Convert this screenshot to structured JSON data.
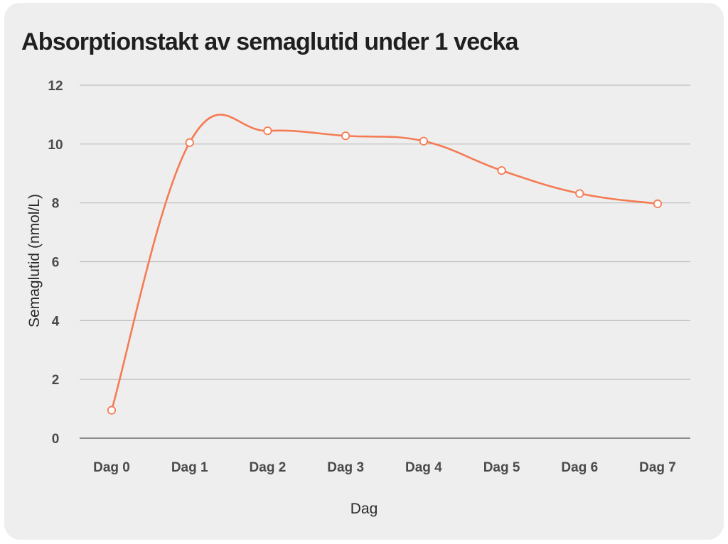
{
  "chart_data": {
    "type": "line",
    "title": "Absorptionstakt av semaglutid under 1 vecka",
    "xlabel": "Dag",
    "ylabel": "Semaglutid (nmol/L)",
    "categories": [
      "Dag 0",
      "Dag 1",
      "Dag 2",
      "Dag 3",
      "Dag 4",
      "Dag 5",
      "Dag 6",
      "Dag 7"
    ],
    "series": [
      {
        "values": [
          0.95,
          10.05,
          10.45,
          10.28,
          10.1,
          9.1,
          8.32,
          7.97
        ]
      }
    ],
    "ylim": [
      0,
      12
    ],
    "yticks": [
      "0",
      "2",
      "4",
      "6",
      "8",
      "10",
      "12"
    ],
    "grid": true,
    "legend": "none",
    "colors": {
      "line": "#f47b54",
      "marker_fill": "#ffffff",
      "grid": "#bdbdbd",
      "axis": "#8a8a8a",
      "background": "#efeeee"
    }
  }
}
